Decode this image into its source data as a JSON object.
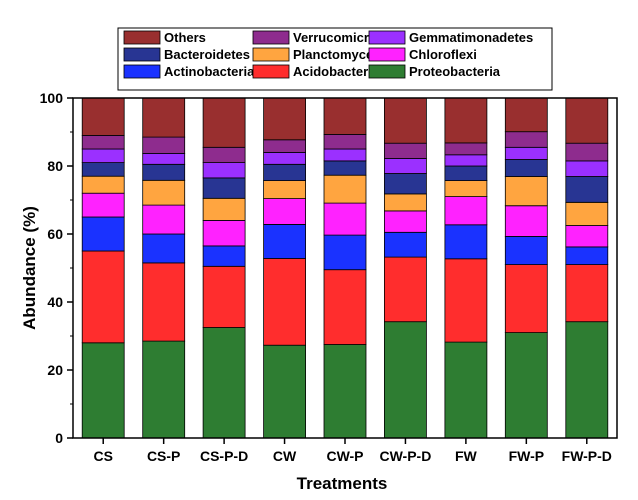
{
  "chart_data": {
    "type": "bar",
    "stacked": true,
    "xlabel": "Treatments",
    "ylabel": "Abundance (%)",
    "ylim": [
      0,
      100
    ],
    "yticks": [
      0,
      20,
      40,
      60,
      80,
      100
    ],
    "grid": false,
    "legend_position": "top",
    "categories": [
      "CS",
      "CS-P",
      "CS-P-D",
      "CW",
      "CW-P",
      "CW-P-D",
      "FW",
      "FW-P",
      "FW-P-D"
    ],
    "series": [
      {
        "name": "Proteobacteria",
        "color": "#2e7d32",
        "values": [
          28.0,
          28.5,
          32.5,
          27.3,
          27.5,
          34.2,
          28.2,
          31.0,
          34.2
        ]
      },
      {
        "name": "Acidobacteria",
        "color": "#ff2d2d",
        "values": [
          27.0,
          23.0,
          18.0,
          25.5,
          22.0,
          19.0,
          24.5,
          20.0,
          16.8
        ]
      },
      {
        "name": "Actinobacteria",
        "color": "#1a32ff",
        "values": [
          10.0,
          8.5,
          6.0,
          10.0,
          10.2,
          7.3,
          10.0,
          8.3,
          5.2
        ]
      },
      {
        "name": "Chloroflexi",
        "color": "#ff22ff",
        "values": [
          7.0,
          8.5,
          7.5,
          7.6,
          9.4,
          6.3,
          8.3,
          9.0,
          6.3
        ]
      },
      {
        "name": "Planctomycetes",
        "color": "#ffa540",
        "values": [
          5.0,
          7.3,
          6.5,
          5.3,
          8.2,
          5.0,
          4.7,
          8.6,
          6.8
        ]
      },
      {
        "name": "Bacteroidetes",
        "color": "#283593",
        "values": [
          4.0,
          4.7,
          6.0,
          4.8,
          4.2,
          6.0,
          4.3,
          5.0,
          7.6
        ]
      },
      {
        "name": "Gemmatimonadetes",
        "color": "#9b30ff",
        "values": [
          4.0,
          3.2,
          4.5,
          3.5,
          3.5,
          4.4,
          3.3,
          3.6,
          4.6
        ]
      },
      {
        "name": "Verrucomicrobia",
        "color": "#8e2c8e",
        "values": [
          4.0,
          4.8,
          4.5,
          3.7,
          4.3,
          4.5,
          3.5,
          4.6,
          5.2
        ]
      },
      {
        "name": "Others",
        "color": "#992f2f",
        "values": [
          11.0,
          11.5,
          14.5,
          12.3,
          10.7,
          13.3,
          13.2,
          9.9,
          13.3
        ]
      }
    ],
    "legend_rows": [
      [
        "Others",
        "Verrucomicrobia",
        "Gemmatimonadetes"
      ],
      [
        "Bacteroidetes",
        "Planctomycetes",
        "Chloroflexi"
      ],
      [
        "Actinobacteria",
        "Acidobacteria",
        "Proteobacteria"
      ]
    ]
  }
}
